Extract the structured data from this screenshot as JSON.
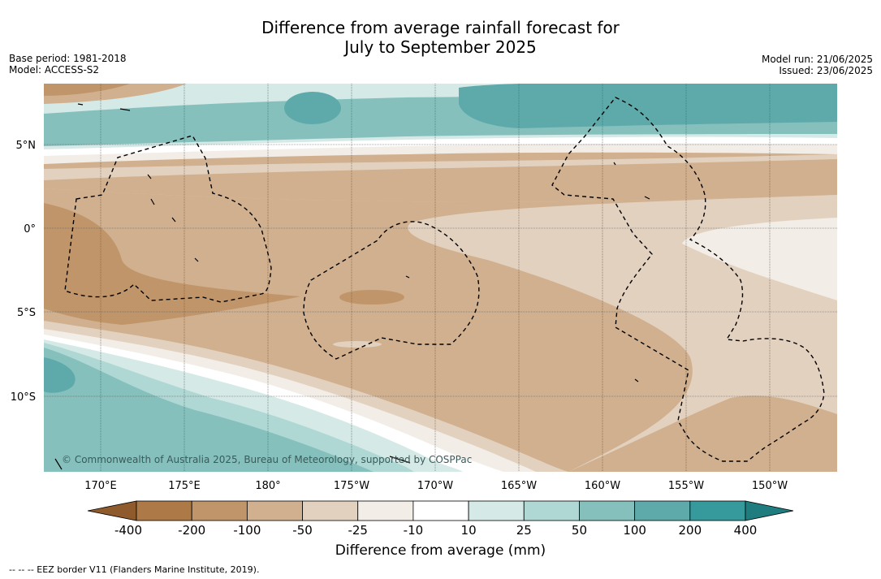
{
  "title": {
    "line1": "Difference from average rainfall forecast for",
    "line2": "July to September 2025"
  },
  "meta_left": {
    "base_period": "Base period: 1981-2018",
    "model": "Model: ACCESS-S2"
  },
  "meta_right": {
    "model_run": "Model run: 21/06/2025",
    "issued": "Issued: 23/06/2025"
  },
  "map": {
    "lat_labels": [
      "5°N",
      "0°",
      "5°S",
      "10°S"
    ],
    "lon_labels": [
      "170°E",
      "175°E",
      "180°",
      "175°W",
      "170°W",
      "165°W",
      "160°W",
      "155°W",
      "150°W"
    ],
    "copyright": "© Commonwealth of Australia 2025, Bureau of Meteorology, supported by COSPPac"
  },
  "colorbar": {
    "tick_labels": [
      "-400",
      "-200",
      "-100",
      "-50",
      "-25",
      "-10",
      "10",
      "25",
      "50",
      "100",
      "200",
      "400"
    ],
    "colors": [
      "#8f5a2c",
      "#ad7a47",
      "#c0956a",
      "#d0b08f",
      "#e3d1bf",
      "#f2ede6",
      "#ffffff",
      "#d5e9e6",
      "#afd8d5",
      "#85c0bd",
      "#5eaaab",
      "#36999b",
      "#1f7c7f"
    ],
    "label": "Difference from average (mm)"
  },
  "footnote": "-- -- -- EEZ border V11 (Flanders Marine Institute, 2019)."
}
